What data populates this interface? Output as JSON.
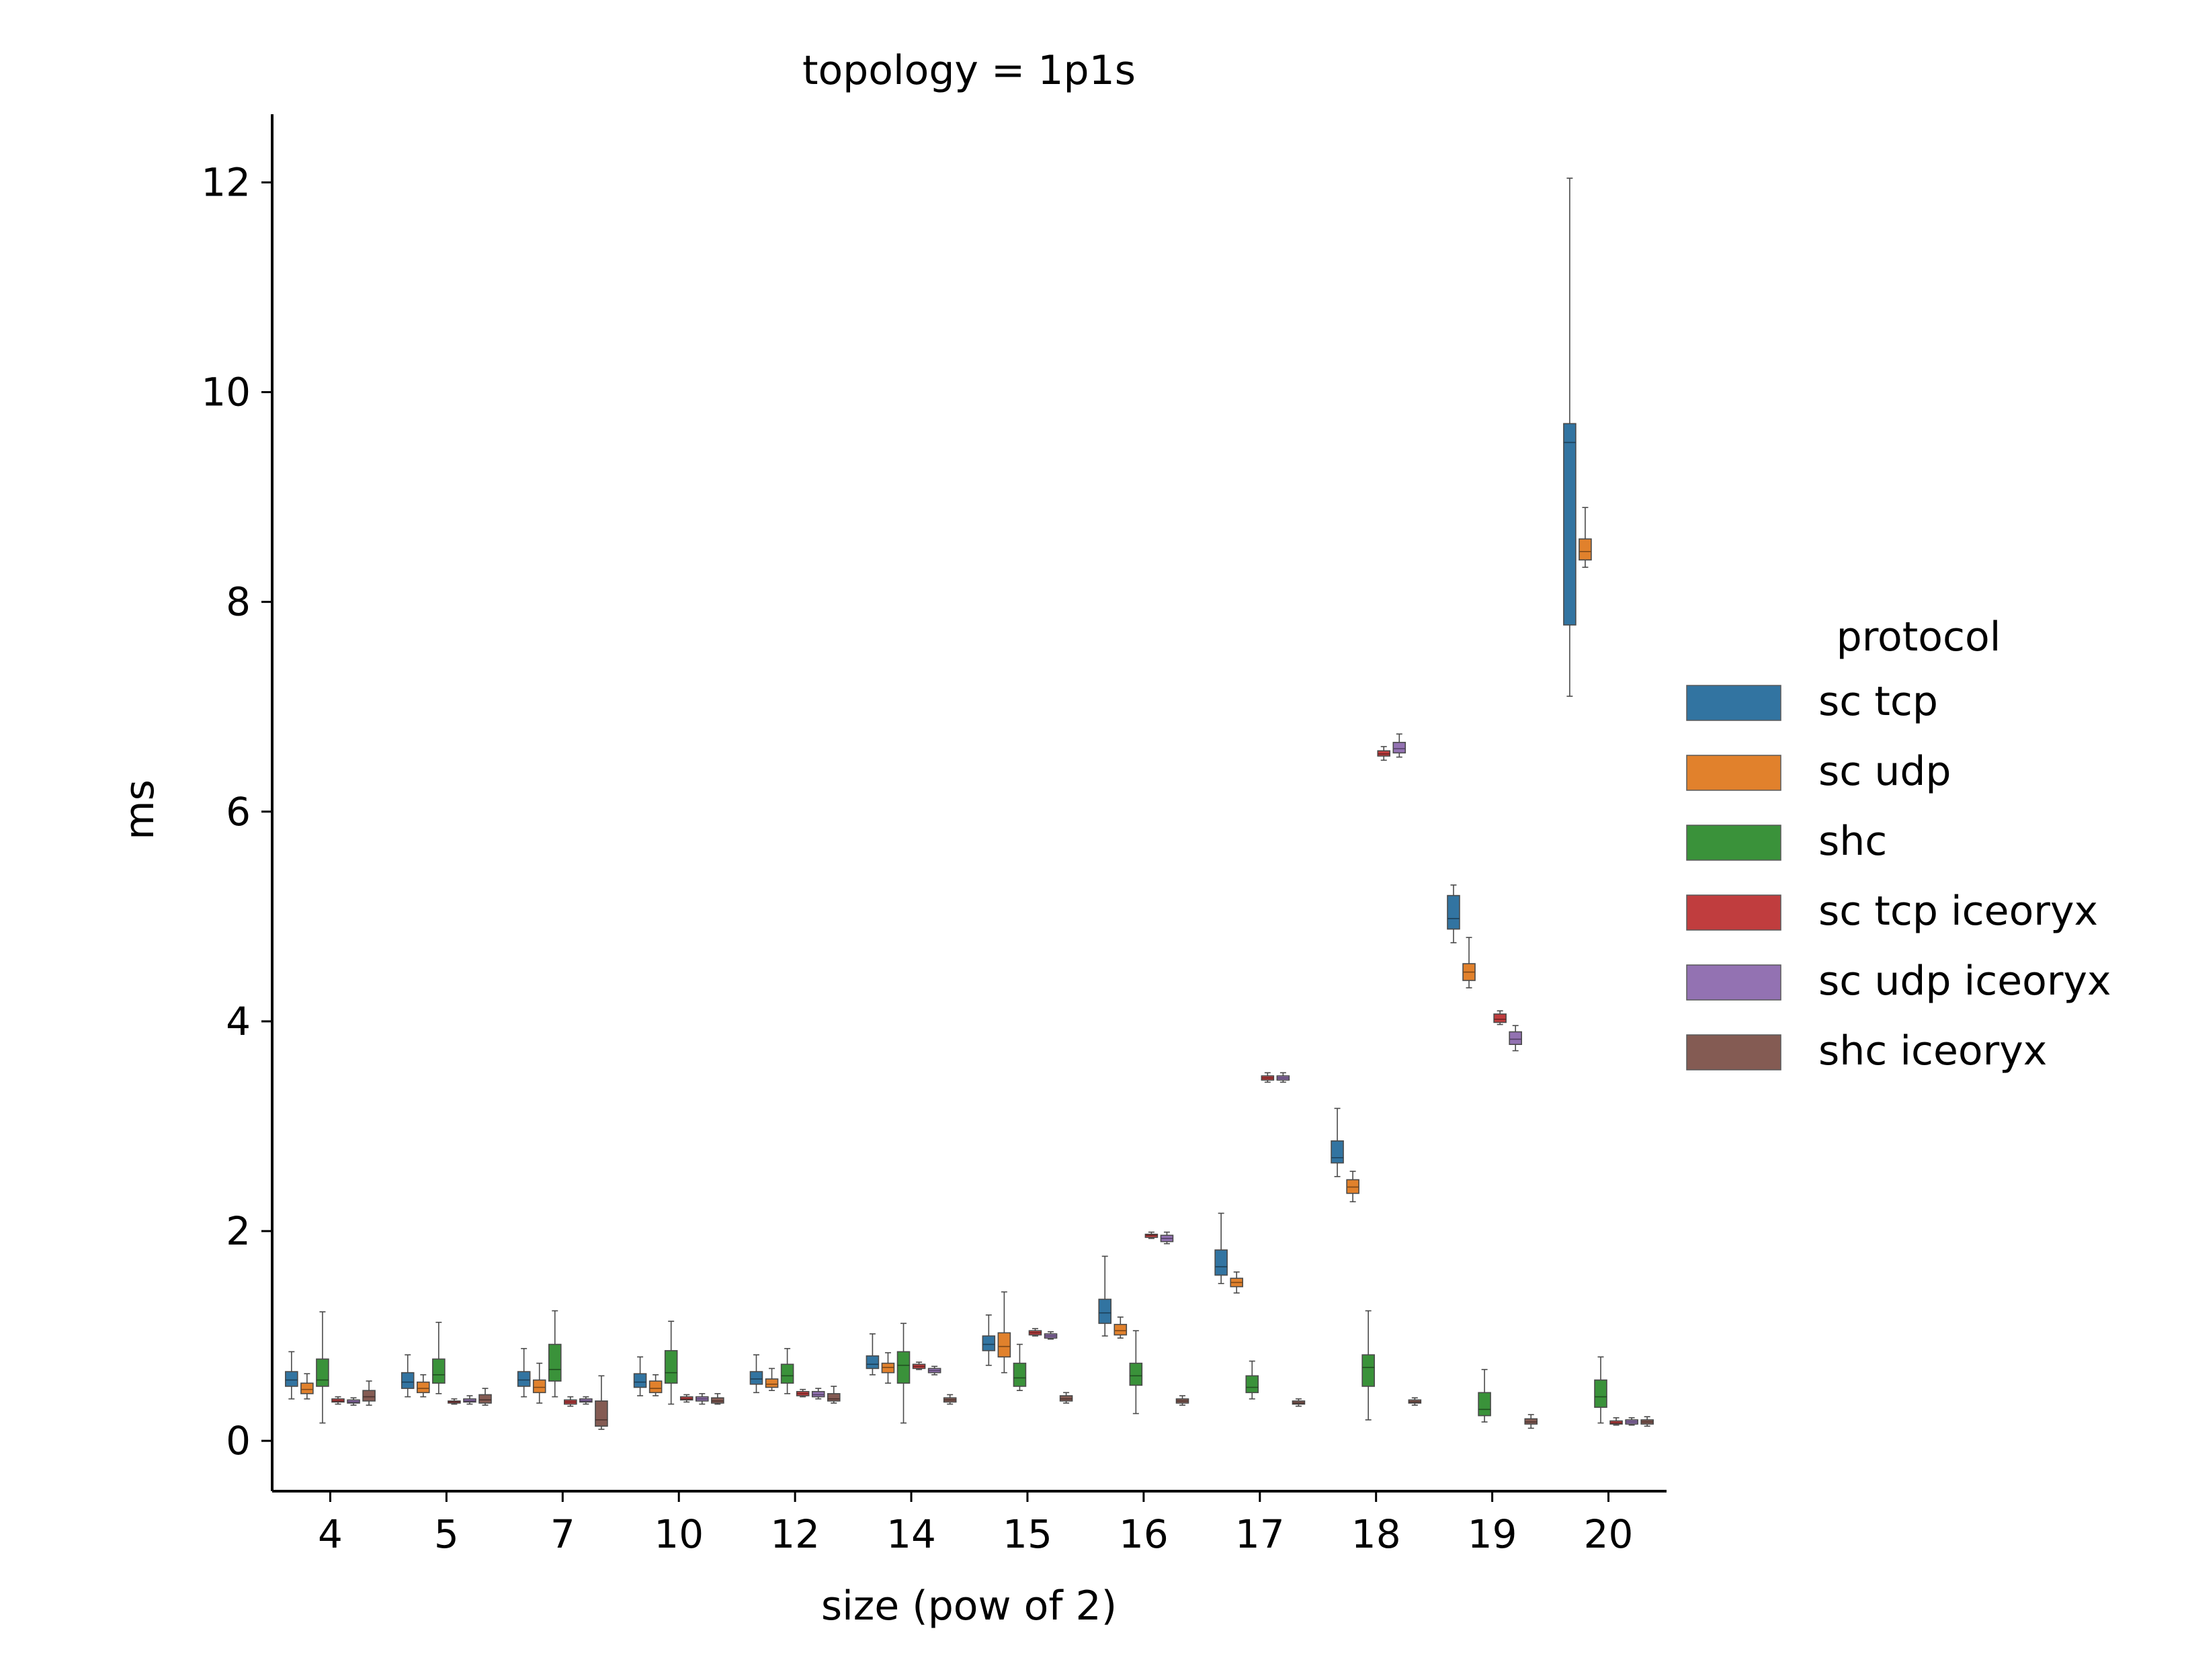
{
  "chart_data": {
    "type": "box",
    "title": "topology = 1p1s",
    "xlabel": "size (pow of 2)",
    "ylabel": "ms",
    "ylim": [
      -0.48,
      12.65
    ],
    "yticks": [
      0,
      2,
      4,
      6,
      8,
      10,
      12
    ],
    "categories": [
      "4",
      "5",
      "7",
      "10",
      "12",
      "14",
      "15",
      "16",
      "17",
      "18",
      "19",
      "20"
    ],
    "legend": {
      "title": "protocol",
      "position": "right"
    },
    "grid": false,
    "series": [
      {
        "name": "sc tcp",
        "color": "#3274a1",
        "boxes": [
          {
            "whislo": 0.4,
            "q1": 0.52,
            "med": 0.58,
            "q3": 0.66,
            "whishi": 0.85
          },
          {
            "whislo": 0.42,
            "q1": 0.5,
            "med": 0.56,
            "q3": 0.65,
            "whishi": 0.82
          },
          {
            "whislo": 0.42,
            "q1": 0.52,
            "med": 0.58,
            "q3": 0.66,
            "whishi": 0.88
          },
          {
            "whislo": 0.43,
            "q1": 0.51,
            "med": 0.56,
            "q3": 0.64,
            "whishi": 0.8
          },
          {
            "whislo": 0.46,
            "q1": 0.54,
            "med": 0.59,
            "q3": 0.66,
            "whishi": 0.82
          },
          {
            "whislo": 0.63,
            "q1": 0.69,
            "med": 0.73,
            "q3": 0.81,
            "whishi": 1.02
          },
          {
            "whislo": 0.72,
            "q1": 0.86,
            "med": 0.92,
            "q3": 1.0,
            "whishi": 1.2
          },
          {
            "whislo": 1.0,
            "q1": 1.12,
            "med": 1.22,
            "q3": 1.35,
            "whishi": 1.76
          },
          {
            "whislo": 1.5,
            "q1": 1.58,
            "med": 1.66,
            "q3": 1.82,
            "whishi": 2.17
          },
          {
            "whislo": 2.52,
            "q1": 2.65,
            "med": 2.7,
            "q3": 2.86,
            "whishi": 3.17
          },
          {
            "whislo": 4.75,
            "q1": 4.88,
            "med": 4.98,
            "q3": 5.2,
            "whishi": 5.3
          },
          {
            "whislo": 7.1,
            "q1": 7.78,
            "med": 9.52,
            "q3": 9.7,
            "whishi": 12.04
          }
        ]
      },
      {
        "name": "sc udp",
        "color": "#e1812c",
        "boxes": [
          {
            "whislo": 0.4,
            "q1": 0.45,
            "med": 0.49,
            "q3": 0.55,
            "whishi": 0.64
          },
          {
            "whislo": 0.42,
            "q1": 0.46,
            "med": 0.5,
            "q3": 0.56,
            "whishi": 0.63
          },
          {
            "whislo": 0.36,
            "q1": 0.46,
            "med": 0.51,
            "q3": 0.58,
            "whishi": 0.74
          },
          {
            "whislo": 0.43,
            "q1": 0.46,
            "med": 0.5,
            "q3": 0.57,
            "whishi": 0.63
          },
          {
            "whislo": 0.48,
            "q1": 0.51,
            "med": 0.54,
            "q3": 0.59,
            "whishi": 0.69
          },
          {
            "whislo": 0.55,
            "q1": 0.65,
            "med": 0.7,
            "q3": 0.74,
            "whishi": 0.84
          },
          {
            "whislo": 0.65,
            "q1": 0.8,
            "med": 0.9,
            "q3": 1.03,
            "whishi": 1.42
          },
          {
            "whislo": 0.98,
            "q1": 1.01,
            "med": 1.05,
            "q3": 1.11,
            "whishi": 1.18
          },
          {
            "whislo": 1.41,
            "q1": 1.47,
            "med": 1.51,
            "q3": 1.55,
            "whishi": 1.61
          },
          {
            "whislo": 2.28,
            "q1": 2.36,
            "med": 2.42,
            "q3": 2.49,
            "whishi": 2.57
          },
          {
            "whislo": 4.32,
            "q1": 4.39,
            "med": 4.47,
            "q3": 4.55,
            "whishi": 4.8
          },
          {
            "whislo": 8.33,
            "q1": 8.4,
            "med": 8.48,
            "q3": 8.6,
            "whishi": 8.9
          }
        ]
      },
      {
        "name": "shc",
        "color": "#3a923a",
        "boxes": [
          {
            "whislo": 0.17,
            "q1": 0.52,
            "med": 0.58,
            "q3": 0.78,
            "whishi": 1.23
          },
          {
            "whislo": 0.45,
            "q1": 0.55,
            "med": 0.63,
            "q3": 0.78,
            "whishi": 1.13
          },
          {
            "whislo": 0.42,
            "q1": 0.57,
            "med": 0.68,
            "q3": 0.92,
            "whishi": 1.24
          },
          {
            "whislo": 0.35,
            "q1": 0.55,
            "med": 0.65,
            "q3": 0.86,
            "whishi": 1.14
          },
          {
            "whislo": 0.45,
            "q1": 0.55,
            "med": 0.62,
            "q3": 0.73,
            "whishi": 0.88
          },
          {
            "whislo": 0.17,
            "q1": 0.55,
            "med": 0.72,
            "q3": 0.85,
            "whishi": 1.12
          },
          {
            "whislo": 0.48,
            "q1": 0.52,
            "med": 0.6,
            "q3": 0.74,
            "whishi": 0.92
          },
          {
            "whislo": 0.26,
            "q1": 0.53,
            "med": 0.62,
            "q3": 0.74,
            "whishi": 1.05
          },
          {
            "whislo": 0.4,
            "q1": 0.46,
            "med": 0.51,
            "q3": 0.62,
            "whishi": 0.76
          },
          {
            "whislo": 0.2,
            "q1": 0.52,
            "med": 0.7,
            "q3": 0.82,
            "whishi": 1.24
          },
          {
            "whislo": 0.18,
            "q1": 0.24,
            "med": 0.3,
            "q3": 0.46,
            "whishi": 0.68
          },
          {
            "whislo": 0.17,
            "q1": 0.32,
            "med": 0.42,
            "q3": 0.58,
            "whishi": 0.8
          }
        ]
      },
      {
        "name": "sc tcp iceoryx",
        "color": "#c03d3e",
        "boxes": [
          {
            "whislo": 0.35,
            "q1": 0.37,
            "med": 0.38,
            "q3": 0.4,
            "whishi": 0.42
          },
          {
            "whislo": 0.35,
            "q1": 0.36,
            "med": 0.37,
            "q3": 0.38,
            "whishi": 0.4
          },
          {
            "whislo": 0.33,
            "q1": 0.35,
            "med": 0.37,
            "q3": 0.39,
            "whishi": 0.42
          },
          {
            "whislo": 0.37,
            "q1": 0.39,
            "med": 0.4,
            "q3": 0.42,
            "whishi": 0.44
          },
          {
            "whislo": 0.42,
            "q1": 0.43,
            "med": 0.45,
            "q3": 0.47,
            "whishi": 0.49
          },
          {
            "whislo": 0.68,
            "q1": 0.69,
            "med": 0.71,
            "q3": 0.73,
            "whishi": 0.75
          },
          {
            "whislo": 1.0,
            "q1": 1.01,
            "med": 1.03,
            "q3": 1.05,
            "whishi": 1.07
          },
          {
            "whislo": 1.93,
            "q1": 1.94,
            "med": 1.96,
            "q3": 1.97,
            "whishi": 1.99
          },
          {
            "whislo": 3.42,
            "q1": 3.44,
            "med": 3.46,
            "q3": 3.48,
            "whishi": 3.51
          },
          {
            "whislo": 6.49,
            "q1": 6.53,
            "med": 6.55,
            "q3": 6.58,
            "whishi": 6.62
          },
          {
            "whislo": 3.97,
            "q1": 3.99,
            "med": 4.02,
            "q3": 4.07,
            "whishi": 4.1
          },
          {
            "whislo": 0.15,
            "q1": 0.16,
            "med": 0.17,
            "q3": 0.19,
            "whishi": 0.22
          }
        ]
      },
      {
        "name": "sc udp iceoryx",
        "color": "#9372b2",
        "boxes": [
          {
            "whislo": 0.34,
            "q1": 0.36,
            "med": 0.37,
            "q3": 0.39,
            "whishi": 0.41
          },
          {
            "whislo": 0.35,
            "q1": 0.37,
            "med": 0.38,
            "q3": 0.4,
            "whishi": 0.43
          },
          {
            "whislo": 0.35,
            "q1": 0.37,
            "med": 0.38,
            "q3": 0.4,
            "whishi": 0.42
          },
          {
            "whislo": 0.35,
            "q1": 0.38,
            "med": 0.4,
            "q3": 0.42,
            "whishi": 0.45
          },
          {
            "whislo": 0.4,
            "q1": 0.42,
            "med": 0.44,
            "q3": 0.47,
            "whishi": 0.5
          },
          {
            "whislo": 0.63,
            "q1": 0.65,
            "med": 0.67,
            "q3": 0.69,
            "whishi": 0.71
          },
          {
            "whislo": 0.97,
            "q1": 0.98,
            "med": 1.0,
            "q3": 1.02,
            "whishi": 1.04
          },
          {
            "whislo": 1.88,
            "q1": 1.9,
            "med": 1.93,
            "q3": 1.96,
            "whishi": 1.99
          },
          {
            "whislo": 3.42,
            "q1": 3.44,
            "med": 3.46,
            "q3": 3.48,
            "whishi": 3.51
          },
          {
            "whislo": 6.52,
            "q1": 6.56,
            "med": 6.6,
            "q3": 6.66,
            "whishi": 6.74
          },
          {
            "whislo": 3.72,
            "q1": 3.78,
            "med": 3.83,
            "q3": 3.9,
            "whishi": 3.96
          },
          {
            "whislo": 0.15,
            "q1": 0.16,
            "med": 0.18,
            "q3": 0.2,
            "whishi": 0.22
          }
        ]
      },
      {
        "name": "shc iceoryx",
        "color": "#845b53",
        "boxes": [
          {
            "whislo": 0.34,
            "q1": 0.38,
            "med": 0.42,
            "q3": 0.48,
            "whishi": 0.57
          },
          {
            "whislo": 0.34,
            "q1": 0.36,
            "med": 0.39,
            "q3": 0.44,
            "whishi": 0.5
          },
          {
            "whislo": 0.11,
            "q1": 0.14,
            "med": 0.2,
            "q3": 0.38,
            "whishi": 0.62
          },
          {
            "whislo": 0.35,
            "q1": 0.36,
            "med": 0.38,
            "q3": 0.41,
            "whishi": 0.45
          },
          {
            "whislo": 0.36,
            "q1": 0.38,
            "med": 0.4,
            "q3": 0.45,
            "whishi": 0.52
          },
          {
            "whislo": 0.35,
            "q1": 0.37,
            "med": 0.39,
            "q3": 0.41,
            "whishi": 0.44
          },
          {
            "whislo": 0.36,
            "q1": 0.38,
            "med": 0.4,
            "q3": 0.43,
            "whishi": 0.46
          },
          {
            "whislo": 0.34,
            "q1": 0.36,
            "med": 0.38,
            "q3": 0.4,
            "whishi": 0.43
          },
          {
            "whislo": 0.33,
            "q1": 0.35,
            "med": 0.36,
            "q3": 0.38,
            "whishi": 0.4
          },
          {
            "whislo": 0.34,
            "q1": 0.36,
            "med": 0.37,
            "q3": 0.39,
            "whishi": 0.41
          },
          {
            "whislo": 0.12,
            "q1": 0.16,
            "med": 0.18,
            "q3": 0.21,
            "whishi": 0.25
          },
          {
            "whislo": 0.14,
            "q1": 0.16,
            "med": 0.18,
            "q3": 0.2,
            "whishi": 0.23
          }
        ]
      }
    ]
  }
}
